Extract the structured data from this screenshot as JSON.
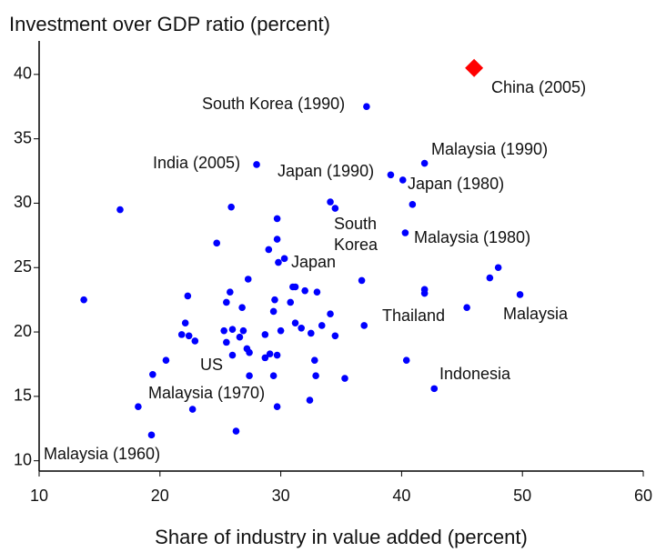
{
  "chart_data": {
    "type": "scatter",
    "title": "Investment over GDP ratio (percent)",
    "x_label": "Share of industry in value added (percent)",
    "xlim": [
      10,
      60
    ],
    "ylim": [
      9.2,
      42.6
    ],
    "xticks": [
      10,
      20,
      30,
      40,
      50,
      60
    ],
    "yticks": [
      10,
      15,
      20,
      25,
      30,
      35,
      40
    ],
    "series": [
      {
        "color": "#0000ff",
        "marker": "circle",
        "x": [
          16.7,
          13.7,
          28.0,
          37.1,
          41.9,
          39.1,
          40.1,
          34.1,
          34.5,
          40.9,
          40.3,
          25.9,
          29.7,
          29.7,
          24.7,
          29.0,
          30.3,
          29.8,
          48.0,
          47.3,
          27.3,
          36.7,
          31.0,
          31.2,
          32.0,
          33.0,
          41.9,
          41.9,
          49.8,
          22.3,
          25.8,
          25.5,
          29.5,
          30.8,
          45.4,
          26.8,
          29.4,
          34.1,
          22.1,
          31.2,
          33.4,
          36.9,
          31.7,
          26.0,
          25.3,
          26.9,
          30.0,
          21.8,
          22.4,
          28.7,
          32.5,
          34.5,
          22.9,
          25.5,
          26.6,
          27.2,
          27.4,
          29.1,
          29.7,
          28.7,
          26.0,
          20.5,
          32.8,
          40.4,
          19.4,
          27.4,
          29.4,
          32.9,
          35.3,
          42.7,
          32.4,
          18.2,
          22.7,
          29.7,
          26.3,
          19.3
        ],
        "values": [
          29.5,
          22.5,
          33.0,
          37.5,
          33.1,
          32.2,
          31.8,
          30.1,
          29.6,
          29.9,
          27.7,
          29.7,
          28.8,
          27.2,
          26.9,
          26.4,
          25.7,
          25.4,
          25.0,
          24.2,
          24.1,
          24.0,
          23.5,
          23.5,
          23.2,
          23.1,
          23.3,
          23.0,
          22.9,
          22.8,
          23.1,
          22.3,
          22.5,
          22.3,
          21.9,
          21.9,
          21.6,
          21.4,
          20.7,
          20.7,
          20.5,
          20.5,
          20.3,
          20.2,
          20.1,
          20.1,
          20.1,
          19.8,
          19.7,
          19.8,
          19.9,
          19.7,
          19.3,
          19.2,
          19.6,
          18.7,
          18.4,
          18.3,
          18.2,
          18.0,
          18.2,
          17.8,
          17.8,
          17.8,
          16.7,
          16.6,
          16.6,
          16.6,
          16.4,
          15.6,
          14.7,
          14.2,
          14.0,
          14.2,
          12.3,
          12.0
        ]
      },
      {
        "color": "#ff0000",
        "marker": "diamond",
        "x": [
          46.0
        ],
        "values": [
          40.5
        ]
      }
    ],
    "annotations": [
      "China (2005)",
      "South Korea (1990)",
      "India (2005)",
      "Malaysia (1990)",
      "Japan (1990)",
      "Japan (1980)",
      "South Korea",
      "Malaysia (1980)",
      "Japan",
      "Thailand",
      "Malaysia",
      "US",
      "Indonesia",
      "Malaysia (1970)",
      "Malaysia (1960)"
    ]
  }
}
